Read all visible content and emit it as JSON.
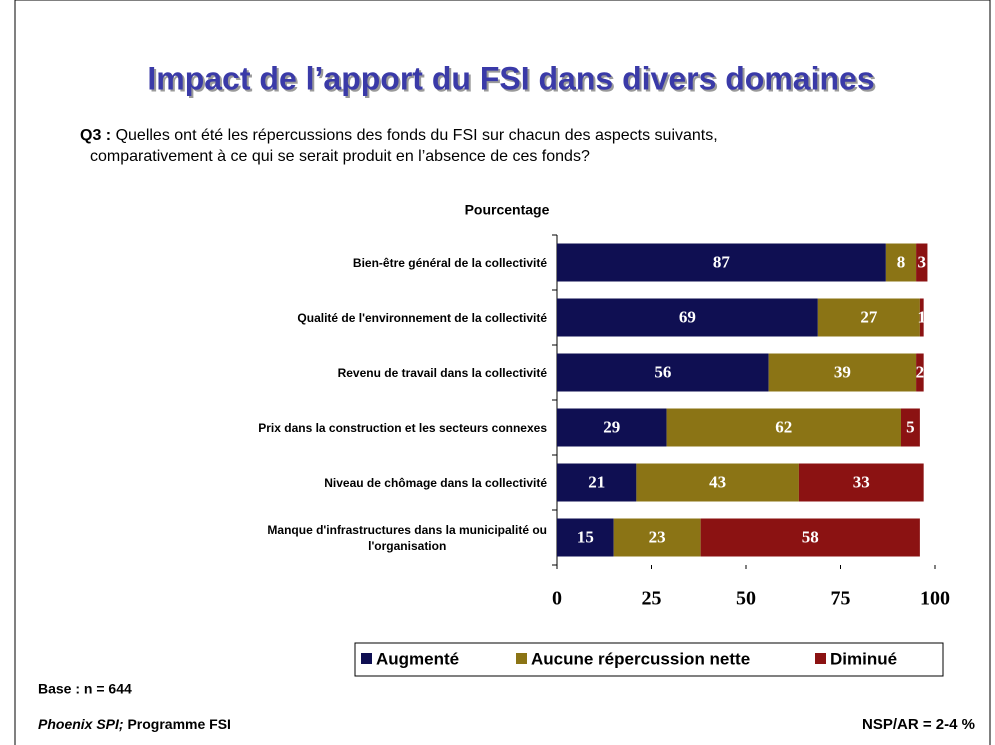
{
  "chart_data": {
    "type": "stacked-bar-horizontal",
    "title": "Impact de l’apport du FSI dans divers domaines",
    "question_label": "Q3 :",
    "question_lines": [
      "Quelles ont été les répercussions des fonds du FSI sur chacun des aspects suivants,",
      "comparativement à ce qui se serait produit en l’absence de ces fonds?"
    ],
    "axis_label": "Pourcentage",
    "categories": [
      "Bien-être général de la collectivité",
      "Qualité de l'environnement de la collectivité",
      "Revenu de travail dans la collectivité",
      "Prix dans la construction et les secteurs connexes",
      "Niveau de chômage dans la collectivité",
      "Manque d'infrastructures dans la municipalité ou\nl'organisation"
    ],
    "series": [
      {
        "name": "Augmenté",
        "color": "#0f0f52",
        "values": [
          87,
          69,
          56,
          29,
          21,
          15
        ]
      },
      {
        "name": "Aucune répercussion nette",
        "color": "#8b7415",
        "values": [
          8,
          27,
          39,
          62,
          43,
          23
        ]
      },
      {
        "name": "Diminué",
        "color": "#8b1212",
        "values": [
          3,
          1,
          2,
          5,
          33,
          58
        ]
      }
    ],
    "xlim": [
      0,
      100
    ],
    "xticks": [
      0,
      25,
      50,
      75,
      100
    ],
    "legend": "bottom",
    "base": "Base : n = 644",
    "source_italic": "Phoenix SPI;",
    "source": "Programme FSI",
    "note": "NSP/AR = 2-4 %"
  }
}
